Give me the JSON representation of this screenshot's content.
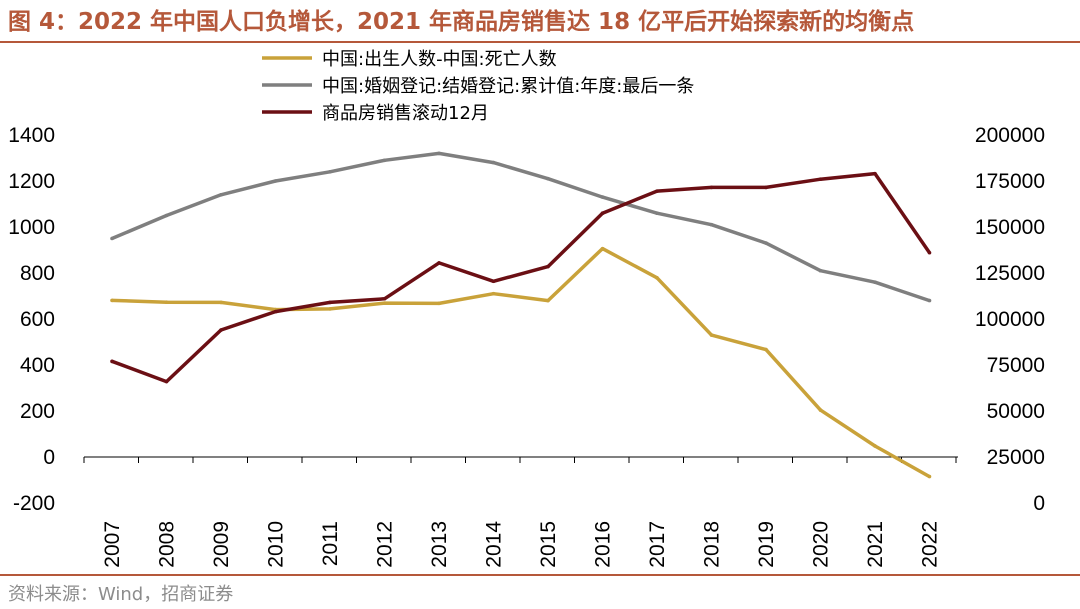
{
  "title": "图 4：2022 年中国人口负增长，2021 年商品房销售达 18 亿平后开始探索新的均衡点",
  "source": "资料来源：Wind，招商证券",
  "chart_data": {
    "type": "line",
    "categories": [
      "2007",
      "2008",
      "2009",
      "2010",
      "2011",
      "2012",
      "2013",
      "2014",
      "2015",
      "2016",
      "2017",
      "2018",
      "2019",
      "2020",
      "2021",
      "2022"
    ],
    "left_axis": {
      "ylim": [
        -200,
        1400
      ],
      "ticks": [
        -200,
        0,
        200,
        400,
        600,
        800,
        1000,
        1200,
        1400
      ]
    },
    "right_axis": {
      "ylim": [
        0,
        200000
      ],
      "ticks": [
        0,
        25000,
        50000,
        75000,
        100000,
        125000,
        150000,
        175000,
        200000
      ]
    },
    "series": [
      {
        "name": "中国:出生人数-中国:死亡人数",
        "axis": "left",
        "color": "#c9a23a",
        "values": [
          681,
          673,
          672,
          641,
          644,
          669,
          668,
          710,
          680,
          906,
          779,
          530,
          467,
          204,
          48,
          -85
        ]
      },
      {
        "name": "中国:婚姻登记:结婚登记:累计值:年度:最后一条",
        "axis": "left",
        "color": "#7f7f7f",
        "values": [
          950,
          1050,
          1140,
          1200,
          1240,
          1290,
          1320,
          1280,
          1210,
          1130,
          1060,
          1010,
          930,
          810,
          760,
          680
        ]
      },
      {
        "name": "商品房销售滚动12月",
        "axis": "right",
        "color": "#6b0f14",
        "values": [
          77000,
          66000,
          94000,
          104000,
          109000,
          111000,
          130500,
          120500,
          128500,
          157500,
          169500,
          171500,
          171500,
          176000,
          179000,
          136000
        ]
      }
    ]
  }
}
